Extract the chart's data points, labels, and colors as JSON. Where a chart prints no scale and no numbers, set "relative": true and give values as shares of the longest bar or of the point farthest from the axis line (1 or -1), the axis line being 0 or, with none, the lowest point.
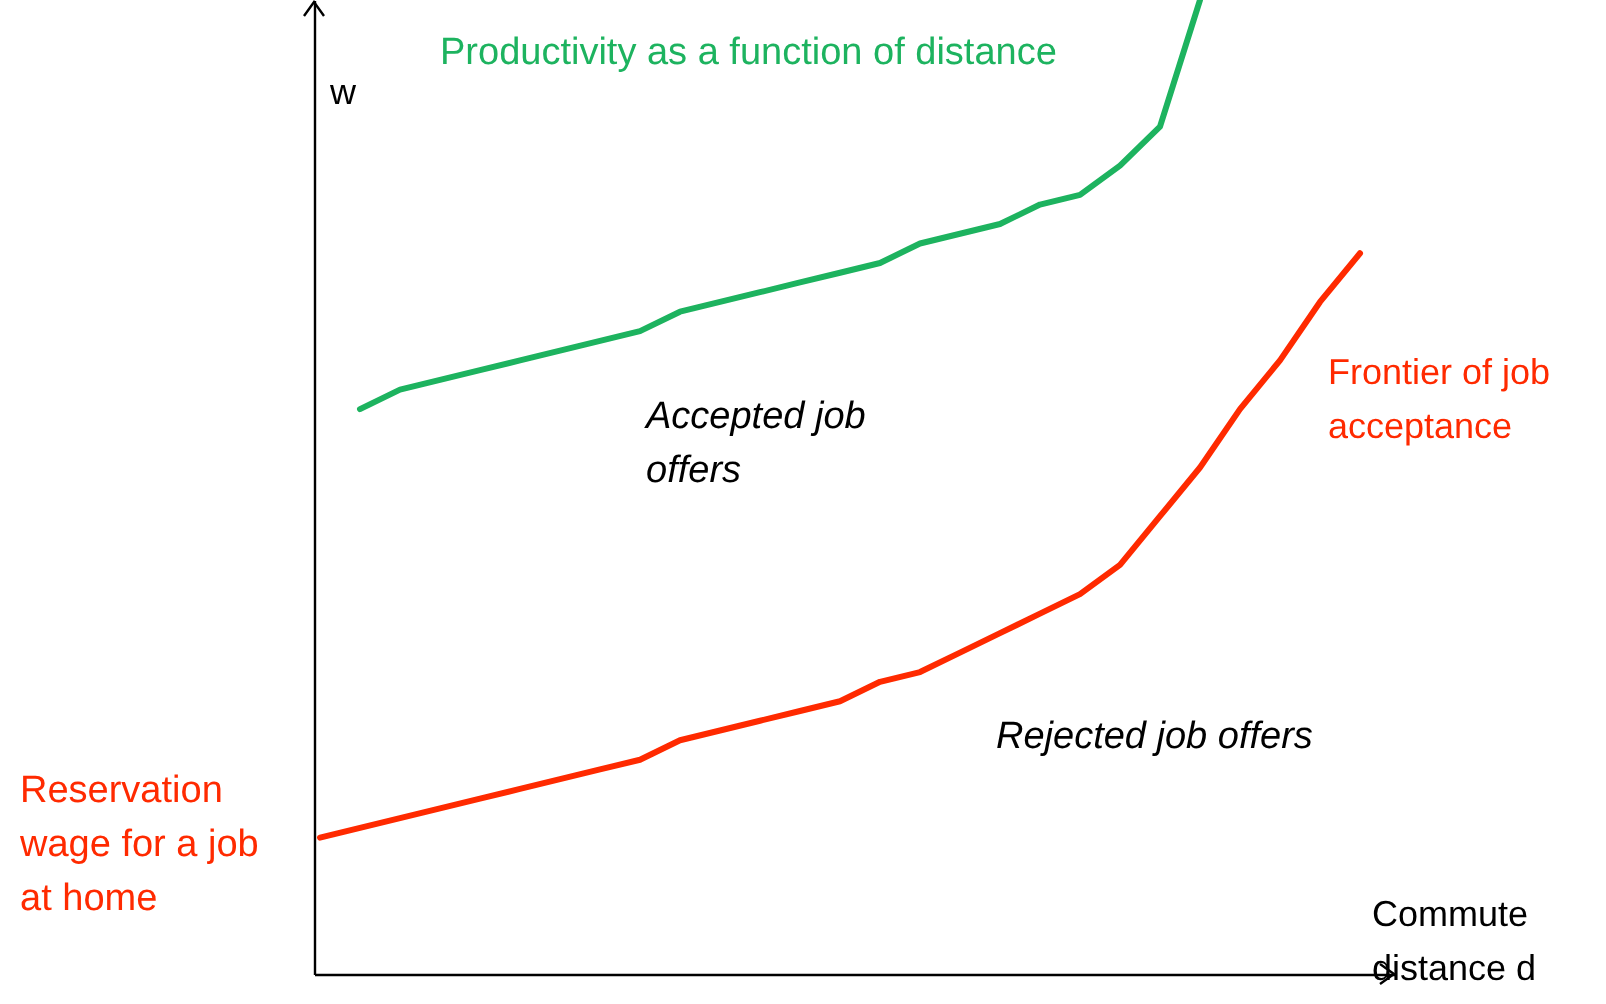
{
  "chart_data": {
    "type": "line",
    "relative": true,
    "xlabel": "Commute distance d",
    "ylabel": "w",
    "categories": [
      null,
      null,
      null,
      null,
      null,
      null,
      null,
      null,
      null,
      null,
      null,
      null,
      null,
      null,
      null,
      null,
      null,
      null,
      null,
      null,
      null,
      null,
      null,
      null,
      null,
      null,
      null
    ],
    "series": [
      {
        "name": "Productivity as a function of distance",
        "color": "#1db35f",
        "values": [
          null,
          0.58,
          0.6,
          0.61,
          0.62,
          0.63,
          0.64,
          0.65,
          0.66,
          0.68,
          0.69,
          0.7,
          0.71,
          0.72,
          0.73,
          0.75,
          0.76,
          0.77,
          0.79,
          0.8,
          0.83,
          0.87,
          1.0,
          null,
          null,
          null,
          null
        ]
      },
      {
        "name": "Frontier of job acceptance",
        "color": "#ff2a00",
        "values": [
          0.14,
          0.15,
          0.16,
          0.17,
          0.18,
          0.19,
          0.2,
          0.21,
          0.22,
          0.24,
          0.25,
          0.26,
          0.27,
          0.28,
          0.3,
          0.31,
          0.33,
          0.35,
          0.37,
          0.39,
          0.42,
          0.47,
          0.52,
          0.58,
          0.63,
          0.69,
          0.74
        ]
      }
    ],
    "annotations": [
      "Reservation wage for a job at home",
      "Accepted job offers",
      "Rejected job offers"
    ],
    "tick_labels": false,
    "grid": false,
    "marker": "none",
    "line_style": "solid"
  }
}
